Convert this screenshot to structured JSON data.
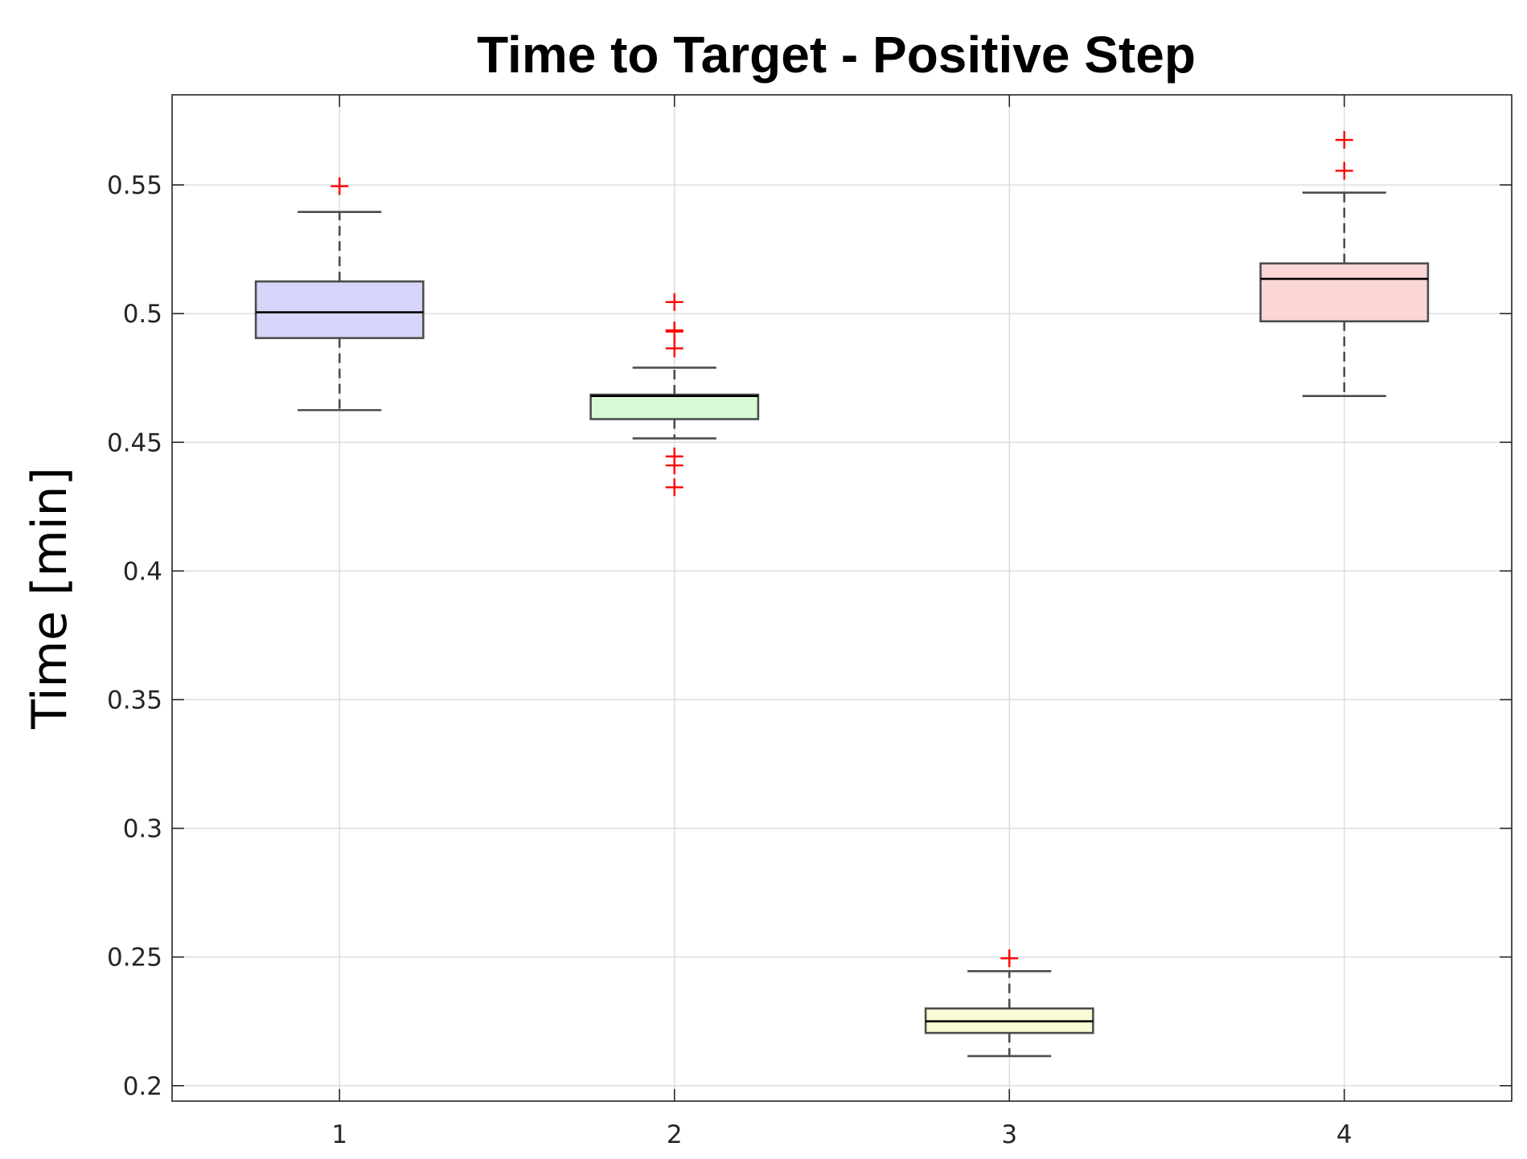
{
  "chart_data": {
    "type": "box",
    "title": "Time to Target - Positive Step",
    "ylabel": "Time [min]",
    "xlabel": "",
    "categories": [
      "1",
      "2",
      "3",
      "4"
    ],
    "ylim": [
      0.194,
      0.585
    ],
    "xlim": [
      0.5,
      4.5
    ],
    "yticks": [
      0.2,
      0.25,
      0.3,
      0.35,
      0.4,
      0.45,
      0.5,
      0.55
    ],
    "ytick_labels": [
      "0.2",
      "0.25",
      "0.3",
      "0.35",
      "0.4",
      "0.45",
      "0.5",
      "0.55"
    ],
    "grid": true,
    "boxes": [
      {
        "category": "1",
        "whisker_low": 0.4625,
        "q1": 0.4905,
        "median": 0.5005,
        "q3": 0.5125,
        "whisker_high": 0.5395,
        "outliers": [
          0.5495
        ],
        "fill": "#d6d6fa"
      },
      {
        "category": "2",
        "whisker_low": 0.4515,
        "q1": 0.459,
        "median": 0.468,
        "q3": 0.4685,
        "whisker_high": 0.479,
        "outliers": [
          0.5045,
          0.4935,
          0.493,
          0.4865,
          0.4445,
          0.441,
          0.4325
        ],
        "fill": "#d6fad6"
      },
      {
        "category": "3",
        "whisker_low": 0.2115,
        "q1": 0.2205,
        "median": 0.225,
        "q3": 0.23,
        "whisker_high": 0.2445,
        "outliers": [
          0.2495
        ],
        "fill": "#fafad4"
      },
      {
        "category": "4",
        "whisker_low": 0.468,
        "q1": 0.497,
        "median": 0.5135,
        "q3": 0.5195,
        "whisker_high": 0.547,
        "outliers": [
          0.5675,
          0.5555
        ],
        "fill": "#fad6d6"
      }
    ],
    "colors": {
      "outlier": "#ff0000",
      "grid": "#dcdcdc",
      "axis": "#262626"
    }
  }
}
